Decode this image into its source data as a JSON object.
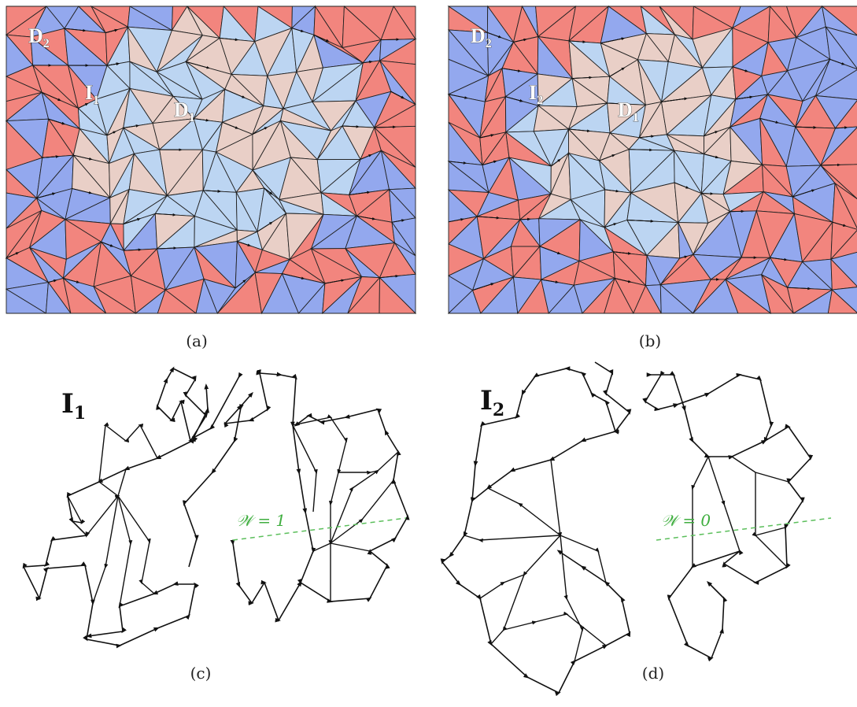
{
  "captions": {
    "a": "(a)",
    "b": "(b)",
    "c": "(c)",
    "d": "(d)"
  },
  "tags": {
    "a": {
      "d2": "D",
      "d2_sub": "2",
      "i": "I",
      "i_sub": "1",
      "d1": "D",
      "d1_sub": "1"
    },
    "b": {
      "d2": "D",
      "d2_sub": "2",
      "i": "I",
      "i_sub": "2",
      "d1": "D",
      "d1_sub": "1"
    }
  },
  "loops": {
    "c": {
      "label": "I",
      "label_sub": "1",
      "winding": "𝒲 = 1"
    },
    "d": {
      "label": "I",
      "label_sub": "2",
      "winding": "𝒲 = 0"
    }
  },
  "colors": {
    "red": "#f2857e",
    "blue": "#93a8ee",
    "light_blue": "#bcd5f2",
    "pink": "#e9cfc7",
    "winding_line": "#5cbf5c",
    "edge": "#111111"
  }
}
